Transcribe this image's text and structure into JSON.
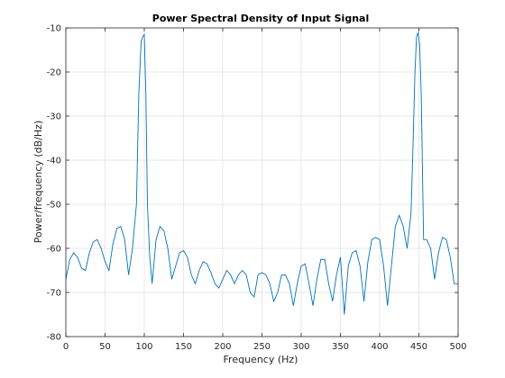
{
  "chart_data": {
    "type": "line",
    "title": "Power Spectral Density of Input Signal",
    "xlabel": "Frequency (Hz)",
    "ylabel": "Power/frequency (dB/Hz)",
    "xlim": [
      0,
      500
    ],
    "ylim": [
      -80,
      -10
    ],
    "xticks": [
      0,
      50,
      100,
      150,
      200,
      250,
      300,
      350,
      400,
      450,
      500
    ],
    "yticks": [
      -80,
      -70,
      -60,
      -50,
      -40,
      -30,
      -20,
      -10
    ],
    "grid": true,
    "line_color": "#0072BD",
    "series": [
      {
        "x": [
          0,
          5,
          10,
          15,
          20,
          25,
          30,
          35,
          40,
          45,
          50,
          55,
          60,
          65,
          70,
          75,
          80,
          85,
          90,
          93,
          96,
          98,
          100,
          102,
          104,
          107,
          110,
          115,
          120,
          125,
          130,
          135,
          140,
          145,
          150,
          155,
          160,
          165,
          170,
          175,
          180,
          185,
          190,
          195,
          200,
          205,
          210,
          215,
          220,
          225,
          230,
          235,
          240,
          245,
          250,
          255,
          260,
          265,
          270,
          275,
          280,
          285,
          290,
          295,
          300,
          305,
          310,
          315,
          320,
          325,
          330,
          335,
          340,
          345,
          350,
          355,
          360,
          365,
          370,
          375,
          380,
          385,
          390,
          395,
          400,
          405,
          410,
          415,
          420,
          425,
          430,
          435,
          440,
          442,
          445,
          447,
          449,
          451,
          453,
          456,
          460,
          465,
          470,
          475,
          480,
          485,
          490,
          495,
          500
        ],
        "y": [
          -67,
          -62.5,
          -61,
          -62,
          -64.5,
          -65,
          -61,
          -58.5,
          -58,
          -60,
          -63,
          -65,
          -59,
          -55.5,
          -55,
          -58,
          -66,
          -60,
          -50,
          -25,
          -13,
          -12,
          -11.5,
          -25,
          -50,
          -62,
          -68,
          -58,
          -55,
          -56,
          -60,
          -67,
          -64,
          -61,
          -60.5,
          -62,
          -66,
          -68,
          -65,
          -63,
          -63.5,
          -65.5,
          -68,
          -69,
          -67,
          -65,
          -66,
          -68,
          -66,
          -65,
          -66,
          -70,
          -71,
          -66,
          -65.5,
          -66,
          -68,
          -72,
          -70,
          -66,
          -66,
          -68,
          -73,
          -68,
          -64,
          -63.5,
          -68,
          -73,
          -67,
          -62.5,
          -62.5,
          -68,
          -72,
          -66,
          -62,
          -75,
          -64,
          -61,
          -60.5,
          -64,
          -72,
          -63,
          -58,
          -57.5,
          -58,
          -64,
          -73,
          -64,
          -55,
          -52.5,
          -55,
          -60,
          -52,
          -40,
          -20,
          -12,
          -11,
          -14,
          -25,
          -58,
          -58,
          -60,
          -67,
          -61,
          -57.5,
          -58,
          -62,
          -68,
          -68
        ]
      }
    ]
  }
}
